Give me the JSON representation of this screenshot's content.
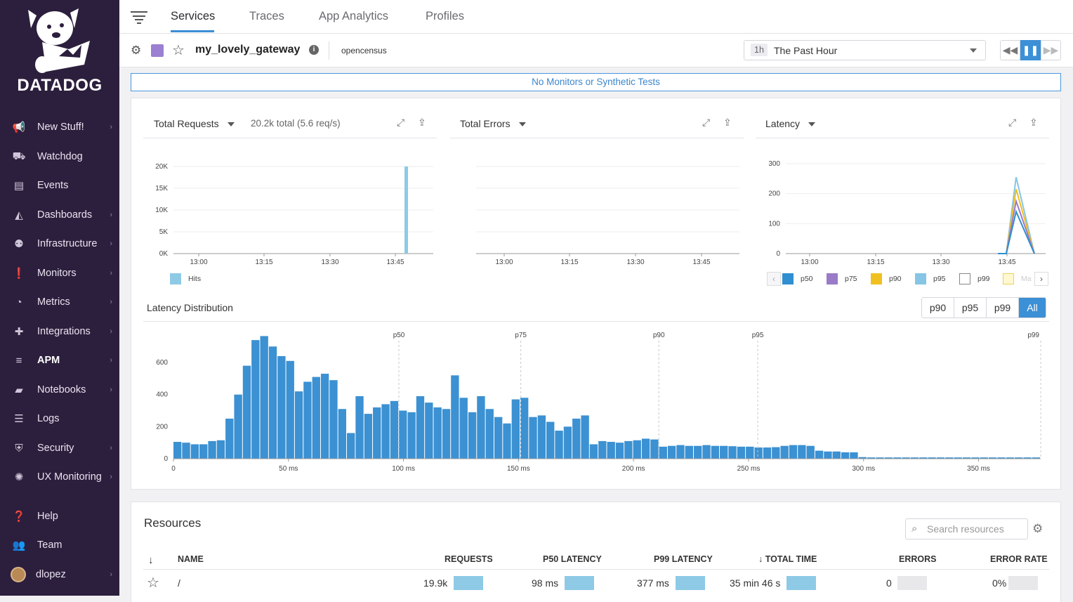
{
  "app": {
    "brand": "DATADOG"
  },
  "sidebar": {
    "items": [
      {
        "label": "New Stuff!",
        "icon": "megaphone-icon",
        "glyph": "📢",
        "chevron": true
      },
      {
        "label": "Watchdog",
        "icon": "binoculars-icon",
        "glyph": "⛟",
        "chevron": false
      },
      {
        "label": "Events",
        "icon": "events-icon",
        "glyph": "▤",
        "chevron": false
      },
      {
        "label": "Dashboards",
        "icon": "dashboards-icon",
        "glyph": "◭",
        "chevron": true
      },
      {
        "label": "Infrastructure",
        "icon": "infrastructure-icon",
        "glyph": "⚉",
        "chevron": true
      },
      {
        "label": "Monitors",
        "icon": "monitors-icon",
        "glyph": "❗",
        "chevron": true
      },
      {
        "label": "Metrics",
        "icon": "metrics-icon",
        "glyph": "◔",
        "chevron": true
      },
      {
        "label": "Integrations",
        "icon": "puzzle-icon",
        "glyph": "✚",
        "chevron": true
      },
      {
        "label": "APM",
        "icon": "apm-icon",
        "glyph": "≡",
        "chevron": true
      },
      {
        "label": "Notebooks",
        "icon": "notebook-icon",
        "glyph": "▰",
        "chevron": true
      },
      {
        "label": "Logs",
        "icon": "logs-icon",
        "glyph": "☰",
        "chevron": false
      },
      {
        "label": "Security",
        "icon": "shield-icon",
        "glyph": "⛨",
        "chevron": true
      },
      {
        "label": "UX Monitoring",
        "icon": "ux-icon",
        "glyph": "✺",
        "chevron": true
      }
    ],
    "help": "Help",
    "team": "Team",
    "user": "dlopez"
  },
  "tabs": [
    "Services",
    "Traces",
    "App Analytics",
    "Profiles"
  ],
  "service": {
    "name": "my_lovely_gateway",
    "tag": "opencensus",
    "color": "#9b7fd1"
  },
  "timeframe": {
    "badge": "1h",
    "label": "The Past Hour"
  },
  "banner": "No Monitors or Synthetic Tests",
  "graphs": {
    "requests": {
      "title": "Total Requests",
      "summary": "20.2k total (5.6 req/s)",
      "legend": "Hits"
    },
    "errors": {
      "title": "Total Errors"
    },
    "latency": {
      "title": "Latency",
      "legend": [
        "p50",
        "p75",
        "p90",
        "p95",
        "p99",
        "Ma"
      ]
    },
    "distribution": {
      "title": "Latency Distribution",
      "buttons": [
        "p90",
        "p95",
        "p99",
        "All"
      ],
      "active": "All"
    }
  },
  "chart_data": [
    {
      "type": "bar",
      "title": "Total Requests",
      "x_ticks": [
        "13:00",
        "13:15",
        "13:30",
        "13:45"
      ],
      "y_ticks": [
        "0K",
        "5K",
        "10K",
        "15K",
        "20K"
      ],
      "ylim": [
        0,
        20000
      ],
      "series": [
        {
          "name": "Hits",
          "color": "#8ecae6",
          "points": [
            {
              "x": "13:47",
              "y": 20000
            }
          ]
        }
      ]
    },
    {
      "type": "line",
      "title": "Total Errors",
      "x_ticks": [
        "13:00",
        "13:15",
        "13:30",
        "13:45"
      ],
      "series": []
    },
    {
      "type": "line",
      "title": "Latency",
      "x_ticks": [
        "13:00",
        "13:15",
        "13:30",
        "13:45"
      ],
      "y_ticks": [
        "0",
        "100",
        "200",
        "300"
      ],
      "ylim": [
        0,
        300
      ],
      "series": [
        {
          "name": "p50",
          "color": "#2f8fd0",
          "values": [
            0,
            0,
            140,
            0
          ]
        },
        {
          "name": "p75",
          "color": "#9a7bc7",
          "values": [
            0,
            0,
            175,
            0
          ]
        },
        {
          "name": "p90",
          "color": "#f0c020",
          "values": [
            0,
            0,
            215,
            0
          ]
        },
        {
          "name": "p95",
          "color": "#86c5e6",
          "values": [
            0,
            0,
            255,
            0
          ]
        }
      ]
    },
    {
      "type": "bar",
      "title": "Latency Distribution",
      "x_ticks": [
        "0",
        "50 ms",
        "100 ms",
        "150 ms",
        "200 ms",
        "250 ms",
        "300 ms",
        "350 ms"
      ],
      "y_ticks": [
        "0",
        "200",
        "400",
        "600"
      ],
      "ylim": [
        0,
        780
      ],
      "xlim": [
        0,
        377
      ],
      "markers": [
        {
          "label": "p50",
          "x": 98
        },
        {
          "label": "p75",
          "x": 151
        },
        {
          "label": "p90",
          "x": 211
        },
        {
          "label": "p95",
          "x": 254
        },
        {
          "label": "p99",
          "x": 377
        }
      ],
      "bin_width_ms": 3.77,
      "values": [
        105,
        100,
        90,
        90,
        110,
        115,
        250,
        400,
        580,
        740,
        765,
        700,
        640,
        610,
        420,
        480,
        510,
        530,
        490,
        310,
        160,
        390,
        280,
        320,
        340,
        360,
        300,
        290,
        390,
        350,
        320,
        310,
        520,
        380,
        290,
        390,
        310,
        260,
        220,
        370,
        380,
        260,
        270,
        230,
        175,
        200,
        250,
        270,
        90,
        110,
        105,
        100,
        110,
        115,
        125,
        120,
        75,
        80,
        85,
        80,
        80,
        85,
        80,
        80,
        78,
        75,
        75,
        70,
        70,
        72,
        80,
        85,
        85,
        80,
        50,
        45,
        45,
        40,
        40,
        10,
        8,
        8,
        8,
        8,
        8,
        8,
        8,
        8,
        8,
        8,
        8,
        8,
        8,
        8,
        8,
        8,
        8,
        8,
        8,
        8
      ]
    }
  ],
  "resources": {
    "title": "Resources",
    "search_placeholder": "Search resources",
    "columns": [
      "NAME",
      "REQUESTS",
      "P50 LATENCY",
      "P99 LATENCY",
      "↓ TOTAL TIME",
      "ERRORS",
      "ERROR RATE"
    ],
    "rows": [
      {
        "name": "/",
        "requests": "19.9k",
        "p50": "98 ms",
        "p99": "377 ms",
        "total_time": "35 min 46 s",
        "errors": "0",
        "error_rate": "0%"
      }
    ]
  }
}
